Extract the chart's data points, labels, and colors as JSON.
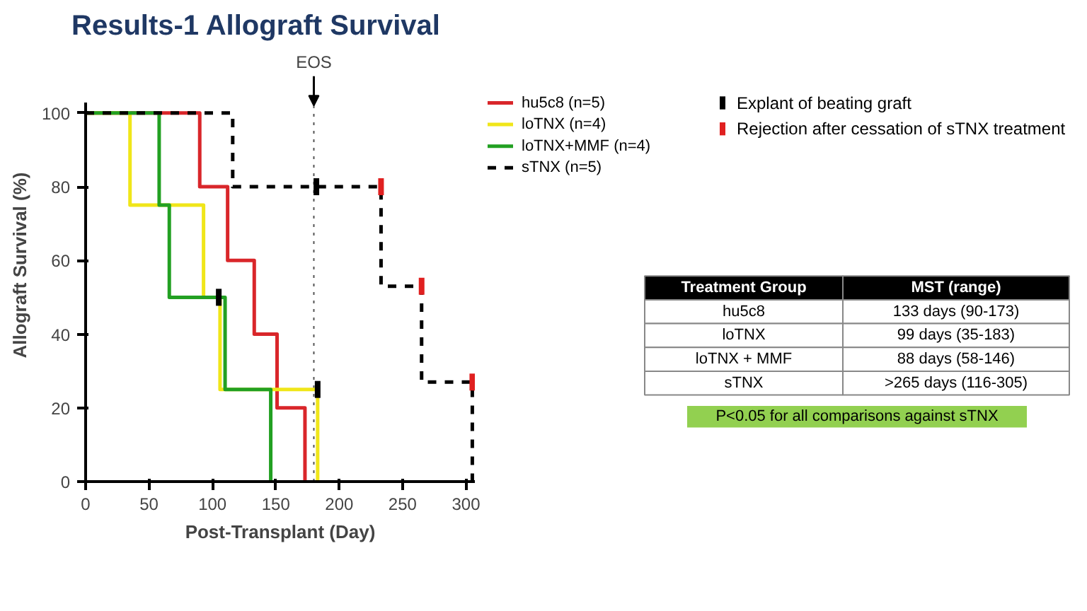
{
  "chart_data": [
    {
      "type": "step",
      "title": "Results-1",
      "subtitle": "Allograft Survival",
      "xlabel": "Post-Transplant (Day)",
      "ylabel": "Allograft Survival (%)",
      "xlim": [
        0,
        307
      ],
      "xticks": [
        0,
        50,
        100,
        150,
        200,
        250,
        300
      ],
      "ylim": [
        0,
        103
      ],
      "yticks": [
        0,
        20,
        40,
        60,
        80,
        100
      ],
      "grid": false,
      "legend": "right",
      "series": [
        {
          "name": "hu5c8 (n=5)",
          "color": "#d9262a",
          "x": [
            0,
            90,
            112,
            133,
            151,
            173
          ],
          "values": [
            100,
            80,
            60,
            40,
            20,
            0
          ]
        },
        {
          "name": "loTNX (n=4)",
          "color": "#f0e619",
          "x": [
            0,
            35,
            93,
            106,
            183
          ],
          "values": [
            100,
            75,
            50,
            25,
            0
          ]
        },
        {
          "name": "loTNX+MMF (n=4)",
          "color": "#22a022",
          "x": [
            0,
            58,
            66,
            110,
            146
          ],
          "values": [
            100,
            75,
            50,
            25,
            0
          ]
        },
        {
          "name": "sTNX (n=5)",
          "color": "#000000",
          "line_style": "dashed",
          "x": [
            0,
            116,
            233,
            265,
            305
          ],
          "values": [
            100,
            80,
            53,
            27,
            0
          ]
        },
        {
          "name": "Explant of beating graft",
          "type": "scatter",
          "color": "#000000",
          "x": [
            105,
            182,
            183
          ],
          "values": [
            50,
            80,
            25
          ]
        },
        {
          "name": "Rejection after cessation of sTNX treatment",
          "type": "scatter",
          "color": "#e02020",
          "x": [
            233,
            265,
            305
          ],
          "values": [
            80,
            53,
            27
          ]
        }
      ],
      "ref_lines": [
        {
          "axis": "x",
          "value": 180,
          "label": "EOS",
          "line_style": "dotted",
          "color": "#555555"
        }
      ]
    },
    {
      "type": "other",
      "annotations": [
        "Treatment Group",
        "MST (range)",
        "hu5c8",
        "133 days (90-173)",
        "loTNX",
        "99 days (35-183)",
        "loTNX + MMF",
        "88 days (58-146)",
        "sTNX",
        ">265 days (116-305)",
        "P<0.05 for all comparisons against sTNX"
      ]
    }
  ]
}
